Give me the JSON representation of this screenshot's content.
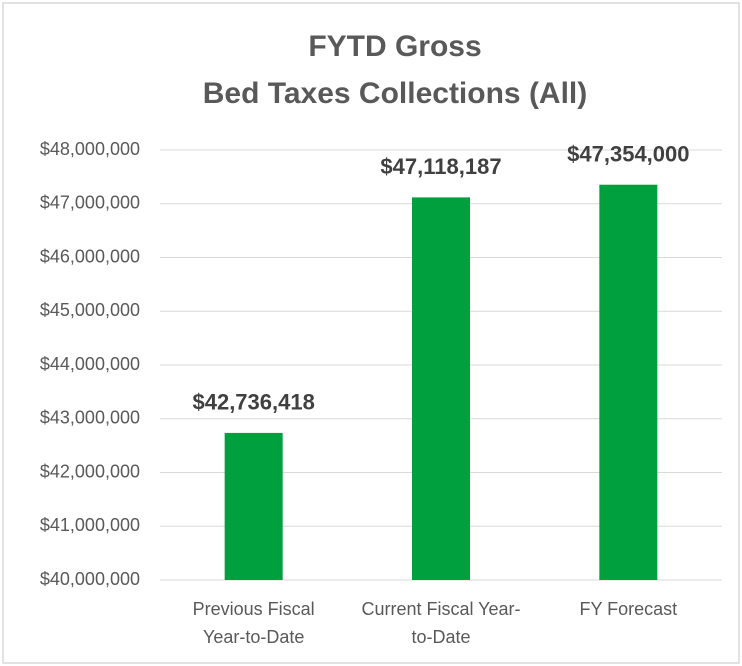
{
  "chart_data": {
    "type": "bar",
    "title": [
      "FYTD Gross",
      "Bed Taxes Collections (All)"
    ],
    "categories": [
      [
        "Previous Fiscal",
        "Year-to-Date"
      ],
      [
        "Current Fiscal Year-",
        "to-Date"
      ],
      [
        "FY Forecast"
      ]
    ],
    "values": [
      42736418,
      47118187,
      47354000
    ],
    "value_labels": [
      "$42,736,418",
      "$47,118,187",
      "$47,354,000"
    ],
    "color": "#00a03e",
    "ylim": [
      40000000,
      48000000
    ],
    "yticks": [
      {
        "value": 40000000,
        "label": "$40,000,000"
      },
      {
        "value": 41000000,
        "label": "$41,000,000"
      },
      {
        "value": 42000000,
        "label": "$42,000,000"
      },
      {
        "value": 43000000,
        "label": "$43,000,000"
      },
      {
        "value": 44000000,
        "label": "$44,000,000"
      },
      {
        "value": 45000000,
        "label": "$45,000,000"
      },
      {
        "value": 46000000,
        "label": "$46,000,000"
      },
      {
        "value": 47000000,
        "label": "$47,000,000"
      },
      {
        "value": 48000000,
        "label": "$48,000,000"
      }
    ],
    "grid": true
  }
}
